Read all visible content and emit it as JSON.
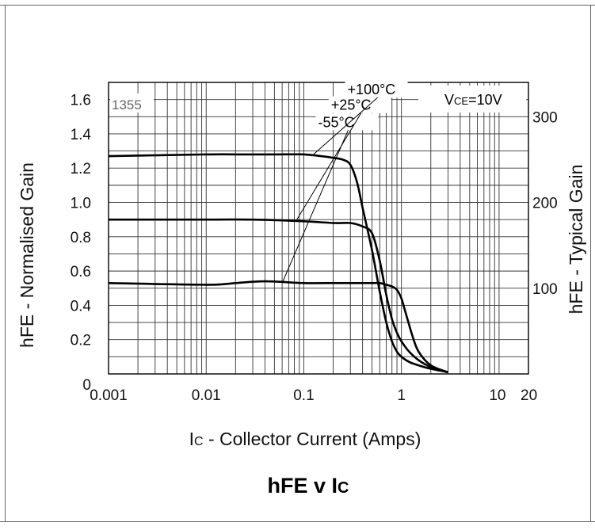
{
  "chart_data": {
    "type": "line",
    "title": "hFE v IC",
    "title_parts": [
      "hFE v I",
      "C"
    ],
    "xlabel": "IC - Collector Current (Amps)",
    "xlabel_parts": [
      "I",
      "C",
      " - Collector Current (Amps)"
    ],
    "ylabel": "hFE - Normalised Gain",
    "y2label": "hFE - Typical Gain",
    "x_scale": "log",
    "xlim": [
      0.001,
      20
    ],
    "ylim": [
      0,
      1.7
    ],
    "y2lim": [
      0,
      340
    ],
    "grid": true,
    "x_ticks": [
      {
        "value": 0.001,
        "label": "0.001"
      },
      {
        "value": 0.01,
        "label": "0.01"
      },
      {
        "value": 0.1,
        "label": "0.1"
      },
      {
        "value": 1,
        "label": "1"
      },
      {
        "value": 10,
        "label": "10"
      },
      {
        "value": 20,
        "label": "20"
      }
    ],
    "y_ticks": [
      {
        "value": 0,
        "label": "0"
      },
      {
        "value": 0.2,
        "label": "0.2"
      },
      {
        "value": 0.4,
        "label": "0.4"
      },
      {
        "value": 0.6,
        "label": "0.6"
      },
      {
        "value": 0.8,
        "label": "0.8"
      },
      {
        "value": 1.0,
        "label": "1.0"
      },
      {
        "value": 1.2,
        "label": "1.2"
      },
      {
        "value": 1.4,
        "label": "1.4"
      },
      {
        "value": 1.6,
        "label": "1.6"
      }
    ],
    "y2_ticks": [
      {
        "value": 100,
        "label": "100"
      },
      {
        "value": 200,
        "label": "200"
      },
      {
        "value": 300,
        "label": "300"
      }
    ],
    "annotation": "VCE=10V",
    "annotation_parts": [
      "V",
      "CE",
      "=10V"
    ],
    "code_label": "1355",
    "series": [
      {
        "name": "+100°C",
        "x": [
          0.001,
          0.01,
          0.02,
          0.05,
          0.1,
          0.15,
          0.2,
          0.25,
          0.3,
          0.35,
          0.4,
          0.5,
          0.6,
          0.7,
          0.8,
          0.9,
          1.0,
          1.2,
          1.5,
          2.0,
          3.0
        ],
        "y": [
          1.27,
          1.28,
          1.28,
          1.28,
          1.28,
          1.27,
          1.26,
          1.25,
          1.22,
          1.12,
          0.97,
          0.72,
          0.48,
          0.3,
          0.19,
          0.13,
          0.1,
          0.07,
          0.05,
          0.03,
          0.01
        ]
      },
      {
        "name": "+25°C",
        "x": [
          0.001,
          0.01,
          0.03,
          0.1,
          0.2,
          0.3,
          0.4,
          0.5,
          0.6,
          0.7,
          0.8,
          0.9,
          1.0,
          1.2,
          1.5,
          2.0,
          3.0
        ],
        "y": [
          0.9,
          0.9,
          0.9,
          0.89,
          0.88,
          0.88,
          0.86,
          0.82,
          0.66,
          0.46,
          0.32,
          0.24,
          0.19,
          0.13,
          0.08,
          0.04,
          0.01
        ]
      },
      {
        "name": "-55°C",
        "x": [
          0.001,
          0.01,
          0.02,
          0.04,
          0.1,
          0.2,
          0.3,
          0.5,
          0.6,
          0.7,
          0.8,
          0.9,
          1.0,
          1.1,
          1.3,
          1.5,
          2.0,
          3.0
        ],
        "y": [
          0.53,
          0.52,
          0.53,
          0.54,
          0.53,
          0.53,
          0.53,
          0.53,
          0.53,
          0.52,
          0.51,
          0.49,
          0.44,
          0.36,
          0.22,
          0.13,
          0.05,
          0.01
        ]
      }
    ],
    "series_labels": [
      {
        "series": "+100°C",
        "label_value": [
          0.28,
          1.63
        ],
        "point": [
          0.12,
          1.27
        ]
      },
      {
        "series": "+25°C",
        "label_value": [
          0.19,
          1.54
        ],
        "point": [
          0.085,
          0.9
        ]
      },
      {
        "series": "-55°C",
        "label_value": [
          0.14,
          1.44
        ],
        "point": [
          0.06,
          0.53
        ]
      }
    ]
  }
}
